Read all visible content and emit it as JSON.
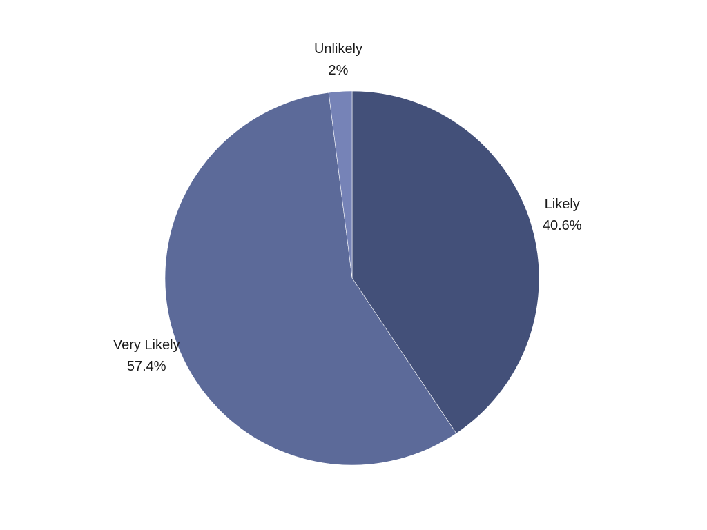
{
  "chart_data": {
    "type": "pie",
    "title": "",
    "slices": [
      {
        "label": "Likely",
        "value": 40.6,
        "value_label": "40.6%",
        "color": "#435079"
      },
      {
        "label": "Very Likely",
        "value": 57.4,
        "value_label": "57.4%",
        "color": "#5c6a99"
      },
      {
        "label": "Unlikely",
        "value": 2,
        "value_label": "2%",
        "color": "#7683b7"
      }
    ],
    "start_angle": "12 o'clock",
    "direction": "clockwise",
    "legend": "none",
    "labels": "outside"
  }
}
